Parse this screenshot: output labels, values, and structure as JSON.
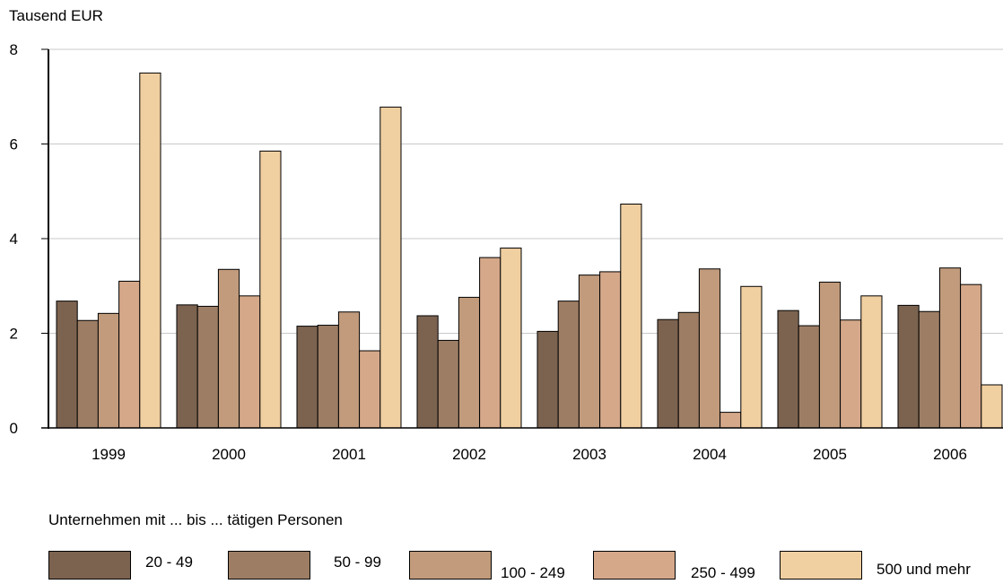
{
  "chart_data": {
    "type": "bar",
    "ylabel": "Tausend EUR",
    "ylim": [
      0,
      8
    ],
    "yticks": [
      0,
      2,
      4,
      6,
      8
    ],
    "grid": true,
    "categories": [
      "1999",
      "2000",
      "2001",
      "2002",
      "2003",
      "2004",
      "2005",
      "2006"
    ],
    "legend_title": "Unternehmen mit  ... bis ... tätigen Personen",
    "legend_position": "bottom",
    "series": [
      {
        "name": "20 - 49",
        "color": "#7c6350",
        "values": [
          2.68,
          2.6,
          2.15,
          2.37,
          2.04,
          2.29,
          2.48,
          2.59
        ]
      },
      {
        "name": "50 - 99",
        "color": "#9d7e65",
        "values": [
          2.27,
          2.57,
          2.17,
          1.85,
          2.68,
          2.44,
          2.16,
          2.46
        ]
      },
      {
        "name": "100 - 249",
        "color": "#c19b7c",
        "values": [
          2.42,
          3.35,
          2.45,
          2.76,
          3.23,
          3.36,
          3.08,
          3.38
        ]
      },
      {
        "name": "250 - 499",
        "color": "#d5a88a",
        "values": [
          3.1,
          2.79,
          1.63,
          3.6,
          3.3,
          0.33,
          2.28,
          3.03
        ]
      },
      {
        "name": "500 und mehr",
        "color": "#f0cfa1",
        "values": [
          7.5,
          5.85,
          6.78,
          3.8,
          4.73,
          2.99,
          2.79,
          0.91
        ]
      }
    ]
  }
}
